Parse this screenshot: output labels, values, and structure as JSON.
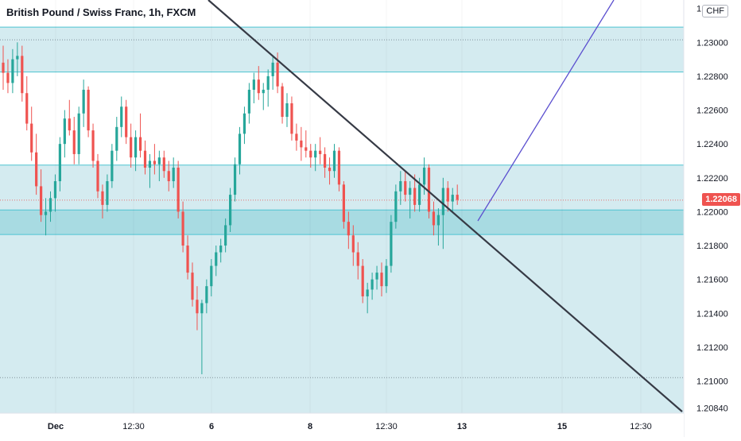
{
  "title": "British Pound / Swiss Franc, 1h, FXCM",
  "currency": "CHF",
  "current_price_label": "1.22068",
  "colors": {
    "up": "#26a69a",
    "down": "#ef5350",
    "zone_light": "#d4ebf0",
    "zone_dark": "#a8dbe2",
    "zone_border": "#4dc3d1",
    "trendline": "#363a45",
    "projection": "#5b4fcf",
    "price_tag": "#ef5350"
  },
  "chart_data": {
    "type": "candlestick",
    "symbol": "GBPCHF",
    "timeframe": "1h",
    "y_range": [
      1.2081,
      1.2325
    ],
    "y_ticks": [
      "1.20840",
      "1.21000",
      "1.21200",
      "1.21400",
      "1.21600",
      "1.21800",
      "1.22000",
      "1.22200",
      "1.22400",
      "1.22600",
      "1.22800",
      "1.23000",
      "1.23200"
    ],
    "x_ticks": [
      "Dec",
      "12:30",
      "6",
      "8",
      "12:30",
      "13",
      "15",
      "12:30"
    ],
    "current_price": 1.22068,
    "zones": [
      {
        "name": "resistance",
        "from": 1.22825,
        "to": 1.2309
      },
      {
        "name": "range",
        "from": 1.208,
        "to": 1.22275
      },
      {
        "name": "support",
        "from": 1.21865,
        "to": 1.2201
      }
    ],
    "dotted_levels": [
      1.23015,
      1.22068,
      1.2102
    ],
    "trendlines": [
      {
        "name": "descending",
        "from": [
          "Dec 4 04:00",
          1.2327
        ],
        "to": [
          "Dec 16 15:00",
          1.2084
        ]
      },
      {
        "name": "projection",
        "from": [
          "Dec 13 08:00",
          1.2193
        ],
        "to": [
          "Dec 16 07:00",
          1.2332
        ]
      }
    ],
    "ohlc": [
      [
        1.2288,
        1.2298,
        1.2272,
        1.2282
      ],
      [
        1.2282,
        1.229,
        1.227,
        1.2276
      ],
      [
        1.2276,
        1.2296,
        1.227,
        1.229
      ],
      [
        1.229,
        1.23,
        1.228,
        1.2292
      ],
      [
        1.2292,
        1.2298,
        1.2265,
        1.227
      ],
      [
        1.227,
        1.228,
        1.2248,
        1.2252
      ],
      [
        1.2252,
        1.2262,
        1.223,
        1.2235
      ],
      [
        1.2235,
        1.2246,
        1.221,
        1.2215
      ],
      [
        1.2215,
        1.2225,
        1.2194,
        1.2198
      ],
      [
        1.2198,
        1.2208,
        1.2186,
        1.22
      ],
      [
        1.22,
        1.2212,
        1.2194,
        1.2208
      ],
      [
        1.2208,
        1.2222,
        1.22,
        1.2218
      ],
      [
        1.2218,
        1.2244,
        1.2212,
        1.224
      ],
      [
        1.224,
        1.226,
        1.2232,
        1.2255
      ],
      [
        1.2255,
        1.2266,
        1.2245,
        1.2248
      ],
      [
        1.2248,
        1.2256,
        1.2228,
        1.2234
      ],
      [
        1.2234,
        1.2262,
        1.2228,
        1.2258
      ],
      [
        1.2258,
        1.2278,
        1.225,
        1.2272
      ],
      [
        1.2272,
        1.2274,
        1.2244,
        1.2248
      ],
      [
        1.2248,
        1.2252,
        1.2226,
        1.223
      ],
      [
        1.223,
        1.2234,
        1.2208,
        1.2212
      ],
      [
        1.2212,
        1.2216,
        1.2196,
        1.2204
      ],
      [
        1.2204,
        1.2222,
        1.22,
        1.2218
      ],
      [
        1.2218,
        1.224,
        1.2214,
        1.2236
      ],
      [
        1.2236,
        1.2256,
        1.223,
        1.225
      ],
      [
        1.225,
        1.2268,
        1.2244,
        1.2262
      ],
      [
        1.2262,
        1.2266,
        1.224,
        1.2244
      ],
      [
        1.2244,
        1.2252,
        1.2226,
        1.2232
      ],
      [
        1.2232,
        1.2248,
        1.2224,
        1.2244
      ],
      [
        1.2244,
        1.2258,
        1.2232,
        1.2236
      ],
      [
        1.2236,
        1.2242,
        1.2222,
        1.2226
      ],
      [
        1.2226,
        1.2234,
        1.2214,
        1.223
      ],
      [
        1.223,
        1.224,
        1.2222,
        1.2228
      ],
      [
        1.2228,
        1.2236,
        1.2218,
        1.2232
      ],
      [
        1.2232,
        1.2236,
        1.222,
        1.2224
      ],
      [
        1.2224,
        1.223,
        1.2212,
        1.2218
      ],
      [
        1.2218,
        1.2232,
        1.2214,
        1.2226
      ],
      [
        1.2226,
        1.223,
        1.2196,
        1.22
      ],
      [
        1.22,
        1.2206,
        1.2176,
        1.218
      ],
      [
        1.218,
        1.2186,
        1.216,
        1.2164
      ],
      [
        1.2164,
        1.217,
        1.2144,
        1.2148
      ],
      [
        1.2148,
        1.2156,
        1.213,
        1.214
      ],
      [
        1.214,
        1.2148,
        1.2104,
        1.2146
      ],
      [
        1.2146,
        1.216,
        1.214,
        1.2156
      ],
      [
        1.2156,
        1.2172,
        1.215,
        1.2168
      ],
      [
        1.2168,
        1.218,
        1.2162,
        1.2176
      ],
      [
        1.2176,
        1.2184,
        1.217,
        1.218
      ],
      [
        1.218,
        1.2196,
        1.2176,
        1.2192
      ],
      [
        1.2192,
        1.2214,
        1.2188,
        1.221
      ],
      [
        1.221,
        1.2232,
        1.2206,
        1.2228
      ],
      [
        1.2228,
        1.225,
        1.2222,
        1.2246
      ],
      [
        1.2246,
        1.2262,
        1.224,
        1.2258
      ],
      [
        1.2258,
        1.2276,
        1.2252,
        1.2272
      ],
      [
        1.2272,
        1.2282,
        1.2264,
        1.2278
      ],
      [
        1.2278,
        1.2286,
        1.2266,
        1.227
      ],
      [
        1.227,
        1.2276,
        1.226,
        1.2272
      ],
      [
        1.2272,
        1.2284,
        1.2262,
        1.228
      ],
      [
        1.228,
        1.2292,
        1.2272,
        1.2288
      ],
      [
        1.2288,
        1.2294,
        1.227,
        1.2274
      ],
      [
        1.2274,
        1.2276,
        1.2252,
        1.2256
      ],
      [
        1.2256,
        1.227,
        1.225,
        1.2264
      ],
      [
        1.2264,
        1.2268,
        1.2242,
        1.2246
      ],
      [
        1.2246,
        1.2252,
        1.2236,
        1.2242
      ],
      [
        1.2242,
        1.225,
        1.223,
        1.2238
      ],
      [
        1.2238,
        1.2248,
        1.2232,
        1.2236
      ],
      [
        1.2236,
        1.224,
        1.2226,
        1.2232
      ],
      [
        1.2232,
        1.224,
        1.2224,
        1.2236
      ],
      [
        1.2236,
        1.2244,
        1.2228,
        1.2234
      ],
      [
        1.2234,
        1.2238,
        1.222,
        1.2226
      ],
      [
        1.2226,
        1.2232,
        1.2216,
        1.2224
      ],
      [
        1.2224,
        1.224,
        1.222,
        1.2236
      ],
      [
        1.2236,
        1.2238,
        1.2212,
        1.2216
      ],
      [
        1.2216,
        1.2218,
        1.219,
        1.2194
      ],
      [
        1.2194,
        1.22,
        1.2178,
        1.2186
      ],
      [
        1.2186,
        1.2192,
        1.2168,
        1.2176
      ],
      [
        1.2176,
        1.2182,
        1.216,
        1.2168
      ],
      [
        1.2168,
        1.2172,
        1.2146,
        1.215
      ],
      [
        1.215,
        1.2158,
        1.214,
        1.2154
      ],
      [
        1.2154,
        1.2164,
        1.2148,
        1.216
      ],
      [
        1.216,
        1.2168,
        1.2154,
        1.2164
      ],
      [
        1.2164,
        1.217,
        1.215,
        1.2156
      ],
      [
        1.2156,
        1.2172,
        1.2152,
        1.2168
      ],
      [
        1.2168,
        1.2198,
        1.2164,
        1.2194
      ],
      [
        1.2194,
        1.2216,
        1.219,
        1.2212
      ],
      [
        1.2212,
        1.2224,
        1.2204,
        1.2218
      ],
      [
        1.2218,
        1.2224,
        1.2206,
        1.221
      ],
      [
        1.221,
        1.2218,
        1.2196,
        1.2214
      ],
      [
        1.2214,
        1.2222,
        1.22,
        1.2204
      ],
      [
        1.2204,
        1.222,
        1.22,
        1.2216
      ],
      [
        1.2216,
        1.2232,
        1.221,
        1.2226
      ],
      [
        1.2226,
        1.2228,
        1.2196,
        1.22
      ],
      [
        1.22,
        1.2206,
        1.2186,
        1.2192
      ],
      [
        1.2192,
        1.2202,
        1.218,
        1.2198
      ],
      [
        1.2198,
        1.222,
        1.2178,
        1.2214
      ],
      [
        1.2214,
        1.2218,
        1.22,
        1.2206
      ],
      [
        1.2206,
        1.2214,
        1.22,
        1.221
      ],
      [
        1.221,
        1.2216,
        1.2204,
        1.2207
      ]
    ]
  }
}
